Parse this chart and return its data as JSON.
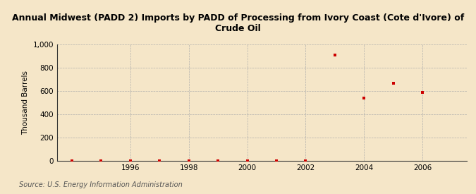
{
  "title": "Annual Midwest (PADD 2) Imports by PADD of Processing from Ivory Coast (Cote d'Ivore) of\nCrude Oil",
  "ylabel": "Thousand Barrels",
  "source": "Source: U.S. Energy Information Administration",
  "background_color": "#f5e6c8",
  "plot_background_color": "#f5e6c8",
  "x_data": [
    1994,
    1995,
    1996,
    1997,
    1998,
    1999,
    2000,
    2001,
    2002,
    2003,
    2004,
    2005,
    2006
  ],
  "y_data": [
    0,
    0,
    0,
    0,
    0,
    0,
    0,
    0,
    0,
    910,
    540,
    670,
    590
  ],
  "point_color": "#cc0000",
  "marker": "s",
  "marker_size": 3,
  "ylim": [
    0,
    1000
  ],
  "yticks": [
    0,
    200,
    400,
    600,
    800,
    1000
  ],
  "xlim": [
    1993.5,
    2007.5
  ],
  "xticks": [
    1996,
    1998,
    2000,
    2002,
    2004,
    2006
  ],
  "grid_color": "#aaaaaa",
  "title_fontsize": 9,
  "axis_label_fontsize": 7.5,
  "tick_fontsize": 7.5,
  "source_fontsize": 7
}
